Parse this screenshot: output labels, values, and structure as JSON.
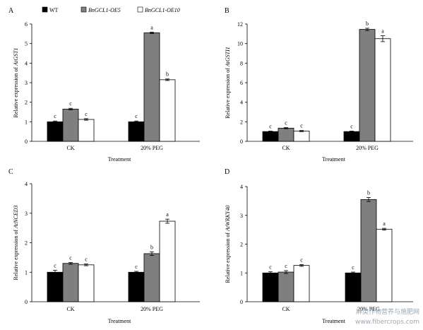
{
  "legend": [
    {
      "marker": "■",
      "name": "WT",
      "fill": "#000000"
    },
    {
      "marker": "■",
      "name": "BnGCL1-OE5",
      "fill": "#7f7f7f"
    },
    {
      "marker": "□",
      "name": "BnGCL1-OE10",
      "fill": "#ffffff"
    }
  ],
  "watermark": {
    "line1": "麻类作物营养与施肥网",
    "line2": "www.fibercrops.com"
  },
  "chart_data": [
    {
      "panel": "A",
      "type": "bar",
      "categories": [
        "CK",
        "20% PEG"
      ],
      "xlabel": "Treatment",
      "ylabel": "Relative expression of AtGST1",
      "ylim": [
        0,
        6
      ],
      "yticks": [
        "0",
        "1",
        "2",
        "3",
        "4",
        "5",
        "6"
      ],
      "series": [
        {
          "name": "WT",
          "values": [
            1.0,
            1.0
          ],
          "errors": [
            0.04,
            0.04
          ],
          "labels": [
            "c",
            "c"
          ]
        },
        {
          "name": "BnGCL1-OE5",
          "values": [
            1.65,
            5.55
          ],
          "errors": [
            0.04,
            0.04
          ],
          "labels": [
            "c",
            "a"
          ]
        },
        {
          "name": "BnGCL1-OE10",
          "values": [
            1.12,
            3.15
          ],
          "errors": [
            0.04,
            0.04
          ],
          "labels": [
            "c",
            "b"
          ]
        }
      ]
    },
    {
      "panel": "B",
      "type": "bar",
      "categories": [
        "CK",
        "20% PEG"
      ],
      "xlabel": "Treatment",
      "ylabel": "Relative expression of AtGSTI1",
      "ylim": [
        0,
        12
      ],
      "yticks": [
        "0",
        "2",
        "4",
        "6",
        "8",
        "10",
        "12"
      ],
      "series": [
        {
          "name": "WT",
          "values": [
            1.0,
            1.0
          ],
          "errors": [
            0.05,
            0.05
          ],
          "labels": [
            "c",
            "c"
          ]
        },
        {
          "name": "BnGCL1-OE5",
          "values": [
            1.35,
            11.45
          ],
          "errors": [
            0.06,
            0.12
          ],
          "labels": [
            "c",
            "b"
          ]
        },
        {
          "name": "BnGCL1-OE10",
          "values": [
            1.05,
            10.5
          ],
          "errors": [
            0.06,
            0.3
          ],
          "labels": [
            "c",
            "a"
          ]
        }
      ]
    },
    {
      "panel": "C",
      "type": "bar",
      "categories": [
        "CK",
        "20% PEG"
      ],
      "xlabel": "Treatment",
      "ylabel": "Relative expression of AtNCED3",
      "ylim": [
        0,
        4
      ],
      "yticks": [
        "0",
        "1",
        "2",
        "3",
        "4"
      ],
      "series": [
        {
          "name": "WT",
          "values": [
            1.0,
            1.0
          ],
          "errors": [
            0.07,
            0.03
          ],
          "labels": [
            "c",
            "c"
          ]
        },
        {
          "name": "BnGCL1-OE5",
          "values": [
            1.3,
            1.63
          ],
          "errors": [
            0.03,
            0.06
          ],
          "labels": [
            "c",
            "b"
          ]
        },
        {
          "name": "BnGCL1-OE10",
          "values": [
            1.25,
            2.73
          ],
          "errors": [
            0.03,
            0.07
          ],
          "labels": [
            "c",
            "a"
          ]
        }
      ]
    },
    {
      "panel": "D",
      "type": "bar",
      "categories": [
        "CK",
        "20% PEG"
      ],
      "xlabel": "Treatment",
      "ylabel": "Relative expression of AtWRKY40",
      "ylim": [
        0,
        4
      ],
      "yticks": [
        "0",
        "1",
        "2",
        "3",
        "4"
      ],
      "series": [
        {
          "name": "WT",
          "values": [
            1.0,
            1.0
          ],
          "errors": [
            0.04,
            0.03
          ],
          "labels": [
            "c",
            "c"
          ]
        },
        {
          "name": "BnGCL1-OE5",
          "values": [
            1.03,
            3.55
          ],
          "errors": [
            0.05,
            0.07
          ],
          "labels": [
            "c",
            "b"
          ]
        },
        {
          "name": "BnGCL1-OE10",
          "values": [
            1.26,
            2.52
          ],
          "errors": [
            0.03,
            0.03
          ],
          "labels": [
            "c",
            "a"
          ]
        }
      ]
    }
  ]
}
